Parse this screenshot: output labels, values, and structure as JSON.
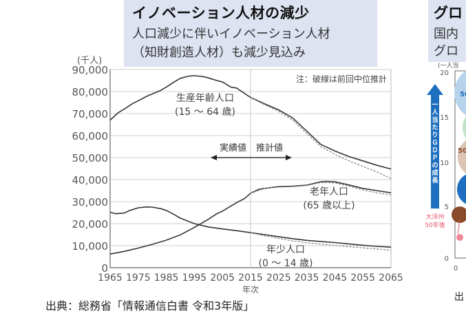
{
  "header": {
    "title": "イノベーション人材の減少",
    "subtitle_line1": "人口減少に伴いイノベーション人材",
    "subtitle_line2": "（知財創造人材）も減少見込み"
  },
  "right_panel": {
    "title_partial": "グロ",
    "subtitle_line1_partial": "国内",
    "subtitle_line2_partial": "グロ",
    "axis_unit_partial": "(一人当",
    "y_ticks": [
      "20",
      "15",
      "10",
      "5",
      "0"
    ],
    "x_tick_first": "0",
    "arrow_label": "一人当たりＧＤＰの成長",
    "arrow_color": "#1f6fc1",
    "oceania_label_line1": "大洋州",
    "oceania_label_line2": "50年後",
    "bubble_labels": [
      "50",
      "50"
    ],
    "source_partial": "出"
  },
  "source": "出典：総務省「情報通信白書 令和3年版」",
  "chart_data": {
    "type": "line",
    "title": "",
    "ylabel": "(千人)",
    "xlabel": "年次",
    "ylim": [
      0,
      90000
    ],
    "xlim": [
      1965,
      2065
    ],
    "y_ticks": [
      0,
      10000,
      20000,
      30000,
      40000,
      50000,
      60000,
      70000,
      80000,
      90000
    ],
    "y_tick_labels": [
      "0",
      "10,000",
      "20,000",
      "30,000",
      "40,000",
      "50,000",
      "60,000",
      "70,000",
      "80,000",
      "90,000"
    ],
    "x_ticks": [
      1965,
      1975,
      1985,
      1995,
      2005,
      2015,
      2025,
      2035,
      2045,
      2055,
      2065
    ],
    "grid": true,
    "divider_year": 2015,
    "note": "注：破線は前回中位推計",
    "actual_label": "実績値",
    "projection_label": "推計値",
    "series": [
      {
        "name": "生産年齢人口 (15～64歳)",
        "label_line1": "生産年齢人口",
        "label_line2": "(15 ～ 64 歳)",
        "style": "solid",
        "x": [
          1965,
          1968,
          1970,
          1973,
          1975,
          1978,
          1980,
          1983,
          1985,
          1988,
          1990,
          1993,
          1995,
          1998,
          2000,
          2003,
          2005,
          2008,
          2010,
          2013,
          2015,
          2020,
          2025,
          2030,
          2035,
          2040,
          2045,
          2050,
          2055,
          2060,
          2065
        ],
        "values": [
          67000,
          70500,
          72000,
          74500,
          75800,
          77800,
          78900,
          80500,
          82000,
          84500,
          86000,
          87000,
          87200,
          86800,
          86200,
          85000,
          84300,
          82000,
          81600,
          79000,
          77300,
          74400,
          71700,
          68000,
          62000,
          56000,
          53000,
          50500,
          48500,
          46500,
          44800
        ]
      },
      {
        "name": "生産年齢人口 前回中位推計",
        "style": "dashed",
        "x": [
          2015,
          2020,
          2025,
          2030,
          2035,
          2040,
          2045,
          2050,
          2055,
          2060,
          2065
        ],
        "values": [
          77300,
          74000,
          71000,
          67000,
          61000,
          55000,
          51500,
          48500,
          46000,
          43500,
          40500
        ]
      },
      {
        "name": "老年人口 (65歳以上)",
        "label_line1": "老年人口",
        "label_line2": "(65 歳以上)",
        "style": "solid",
        "x": [
          1965,
          1970,
          1975,
          1980,
          1985,
          1990,
          1995,
          2000,
          2003,
          2005,
          2008,
          2010,
          2013,
          2015,
          2018,
          2020,
          2025,
          2030,
          2035,
          2040,
          2042,
          2045,
          2050,
          2055,
          2060,
          2065
        ],
        "values": [
          6200,
          7400,
          8900,
          10600,
          12500,
          14900,
          18300,
          22000,
          24500,
          25700,
          28000,
          29500,
          31500,
          33800,
          35600,
          36000,
          36800,
          37000,
          37500,
          39000,
          39200,
          39000,
          37600,
          36000,
          35000,
          34000
        ]
      },
      {
        "name": "老年人口 前回中位推計",
        "style": "dashed",
        "x": [
          2015,
          2020,
          2025,
          2030,
          2035,
          2040,
          2045,
          2050,
          2055,
          2060,
          2065
        ],
        "values": [
          33800,
          36000,
          36600,
          36800,
          37300,
          38700,
          38500,
          37000,
          35300,
          34000,
          33000
        ]
      },
      {
        "name": "年少人口 (0～14歳)",
        "label_line1": "年少人口",
        "label_line2": "(0 ～ 14 歳)",
        "style": "solid",
        "x": [
          1965,
          1967,
          1970,
          1972,
          1975,
          1978,
          1980,
          1983,
          1985,
          1988,
          1990,
          1995,
          2000,
          2005,
          2010,
          2015,
          2020,
          2025,
          2030,
          2035,
          2040,
          2045,
          2050,
          2055,
          2060,
          2065
        ],
        "values": [
          25200,
          24500,
          24800,
          26000,
          27200,
          27600,
          27500,
          26800,
          26000,
          24000,
          22500,
          20000,
          18500,
          17600,
          16800,
          15900,
          15000,
          14100,
          13200,
          12400,
          11900,
          11400,
          10800,
          10200,
          9700,
          9300
        ]
      },
      {
        "name": "年少人口 前回中位推計",
        "style": "dashed",
        "x": [
          2015,
          2020,
          2025,
          2030,
          2035,
          2040,
          2045,
          2050,
          2055,
          2060,
          2065
        ],
        "values": [
          15900,
          14500,
          13300,
          12200,
          11300,
          10700,
          10100,
          9600,
          9000,
          8500,
          7900
        ]
      }
    ]
  }
}
